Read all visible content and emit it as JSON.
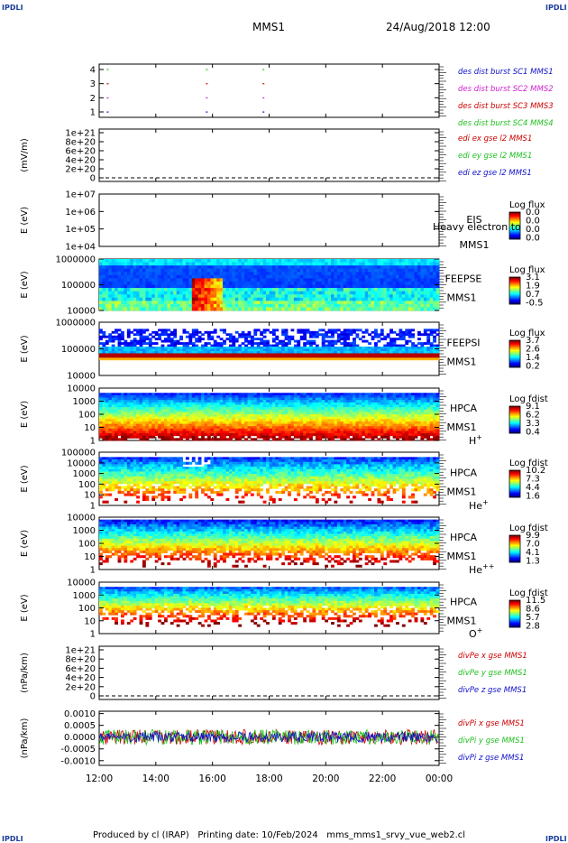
{
  "header": {
    "corner_label": "IPDLI",
    "mission": "MMS1",
    "date_time": "24/Aug/2018 12:00"
  },
  "footer": {
    "text": "Produced by cl (IRAP)   Printing date: 10/Feb/2024   mms_mms1_srvy_vue_web2.cl"
  },
  "time_axis": {
    "labels": [
      "12:00",
      "14:00",
      "16:00",
      "18:00",
      "20:00",
      "22:00",
      "00:00"
    ]
  },
  "colors": {
    "blue": "#1010c8",
    "magenta": "#d020d0",
    "red": "#cc0000",
    "green": "#20c020"
  },
  "chart_data": [
    {
      "type": "scatter",
      "id": "burst",
      "yticks": [
        "4",
        "3",
        "2",
        "1"
      ],
      "legend": [
        {
          "text": "des dist burst SC1 MMS1",
          "color": "#1010c8"
        },
        {
          "text": "des dist burst SC2 MMS2",
          "color": "#d020d0"
        },
        {
          "text": "des dist burst SC3 MMS3",
          "color": "#cc0000"
        },
        {
          "text": "des dist burst SC4 MMS4",
          "color": "#20c020"
        }
      ],
      "x_hours": [
        12.3,
        15.8,
        17.8
      ],
      "series": [
        {
          "y": 1,
          "color": "#1010c8"
        },
        {
          "y": 2,
          "color": "#d020d0"
        },
        {
          "y": 3,
          "color": "#cc0000"
        },
        {
          "y": 4,
          "color": "#20c020"
        }
      ]
    },
    {
      "type": "line",
      "id": "edi",
      "ylabel": "(mV/m)",
      "yticks": [
        "1e+21",
        "8e+20",
        "6e+20",
        "4e+20",
        "2e+20",
        "0"
      ],
      "legend": [
        {
          "text": "edi ex gse l2 MMS1",
          "color": "#cc0000"
        },
        {
          "text": "edi ey gse l2 MMS1",
          "color": "#20c020"
        },
        {
          "text": "edi ez gse l2 MMS1",
          "color": "#1010c8"
        }
      ]
    },
    {
      "type": "heatmap",
      "id": "eis",
      "ylabel": "E (eV)",
      "yticks": [
        "1e+07",
        "1e+06",
        "1e+05",
        "1e+04"
      ],
      "scale_title": "Log flux",
      "scale_values": [
        "0.0",
        "0.0",
        "0.0",
        "0.0"
      ],
      "labels": [
        "EIS",
        "MMS1"
      ],
      "overlay": "Heavy electron to"
    },
    {
      "type": "heatmap",
      "id": "feepse",
      "ylabel": "E (eV)",
      "yticks": [
        "1000000",
        "100000",
        "10000"
      ],
      "scale_title": "Log flux",
      "scale_values": [
        "3.1",
        "1.9",
        "0.7",
        "-0.5"
      ],
      "labels": [
        "FEEPSE",
        "MMS1"
      ]
    },
    {
      "type": "heatmap",
      "id": "feepsi",
      "ylabel": "E (eV)",
      "yticks": [
        "1000000",
        "100000",
        "10000"
      ],
      "scale_title": "Log flux",
      "scale_values": [
        "3.7",
        "2.6",
        "1.4",
        "0.2"
      ],
      "labels": [
        "FEEPSI",
        "MMS1"
      ]
    },
    {
      "type": "heatmap",
      "id": "hpca_h",
      "ylabel": "E (eV)",
      "yticks": [
        "10000",
        "1000",
        "100",
        "10",
        "1"
      ],
      "scale_title": "Log fdist",
      "scale_values": [
        "9.1",
        "6.2",
        "3.3",
        "0.4"
      ],
      "labels": [
        "HPCA",
        "MMS1"
      ],
      "species": "H",
      "species_sup": "+"
    },
    {
      "type": "heatmap",
      "id": "hpca_he",
      "ylabel": "E (eV)",
      "yticks": [
        "100000",
        "10000",
        "1000",
        "100",
        "10",
        "1"
      ],
      "scale_title": "Log fdist",
      "scale_values": [
        "10.2",
        "7.3",
        "4.4",
        "1.6"
      ],
      "labels": [
        "HPCA",
        "MMS1"
      ],
      "species": "He",
      "species_sup": "+"
    },
    {
      "type": "heatmap",
      "id": "hpca_he2",
      "ylabel": "E (eV)",
      "yticks": [
        "10000",
        "1000",
        "100",
        "10",
        "1"
      ],
      "scale_title": "Log fdist",
      "scale_values": [
        "9.9",
        "7.0",
        "4.1",
        "1.3"
      ],
      "labels": [
        "HPCA",
        "MMS1"
      ],
      "species": "He",
      "species_sup": "++"
    },
    {
      "type": "heatmap",
      "id": "hpca_o",
      "ylabel": "E (eV)",
      "yticks": [
        "10000",
        "1000",
        "100",
        "10",
        "1"
      ],
      "scale_title": "Log fdist",
      "scale_values": [
        "11.5",
        "8.6",
        "5.7",
        "2.8"
      ],
      "labels": [
        "HPCA",
        "MMS1"
      ],
      "species": "O",
      "species_sup": "+"
    },
    {
      "type": "line",
      "id": "divpe",
      "ylabel": "(nPa/km)",
      "yticks": [
        "1e+21",
        "8e+20",
        "6e+20",
        "4e+20",
        "2e+20",
        "0"
      ],
      "legend": [
        {
          "text": "divPe x gse MMS1",
          "color": "#cc0000"
        },
        {
          "text": "divPe y gse MMS1",
          "color": "#20c020"
        },
        {
          "text": "divPe z gse MMS1",
          "color": "#1010c8"
        }
      ]
    },
    {
      "type": "line",
      "id": "divpi",
      "ylabel": "(nPa/km)",
      "yticks": [
        "0.0010",
        "0.0005",
        "0.0000",
        "-0.0005",
        "-0.0010"
      ],
      "ylim": [
        -0.0012,
        0.0011
      ],
      "legend": [
        {
          "text": "divPi x gse MMS1",
          "color": "#cc0000"
        },
        {
          "text": "divPi y gse MMS1",
          "color": "#20c020"
        },
        {
          "text": "divPi z gse MMS1",
          "color": "#1010c8"
        }
      ]
    }
  ]
}
